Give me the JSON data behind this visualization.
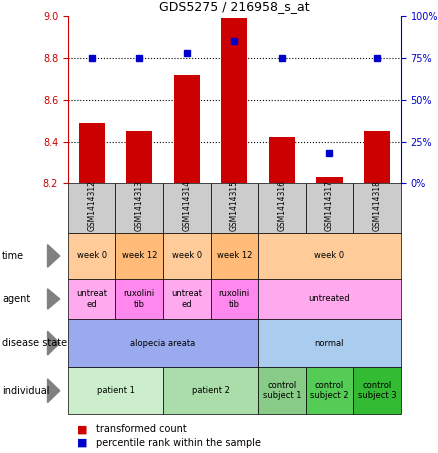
{
  "title": "GDS5275 / 216958_s_at",
  "samples": [
    "GSM1414312",
    "GSM1414313",
    "GSM1414314",
    "GSM1414315",
    "GSM1414316",
    "GSM1414317",
    "GSM1414318"
  ],
  "transformed_count": [
    8.49,
    8.45,
    8.72,
    8.99,
    8.42,
    8.23,
    8.45
  ],
  "percentile_rank": [
    75,
    75,
    78,
    85,
    75,
    18,
    75
  ],
  "ylim_left": [
    8.2,
    9.0
  ],
  "ylim_right": [
    0,
    100
  ],
  "yticks_left": [
    8.2,
    8.4,
    8.6,
    8.8,
    9.0
  ],
  "yticks_right": [
    0,
    25,
    50,
    75,
    100
  ],
  "bar_color": "#cc0000",
  "dot_color": "#0000cc",
  "left_axis_color": "#cc0000",
  "right_axis_color": "#0000cc",
  "sample_box_color": "#cccccc",
  "rows": [
    {
      "key": "individual",
      "label": "individual",
      "cells": [
        {
          "text": "patient 1",
          "span": [
            0,
            1
          ],
          "color": "#cceecc"
        },
        {
          "text": "patient 2",
          "span": [
            2,
            3
          ],
          "color": "#aaddaa"
        },
        {
          "text": "control\nsubject 1",
          "span": [
            4,
            4
          ],
          "color": "#88cc88"
        },
        {
          "text": "control\nsubject 2",
          "span": [
            5,
            5
          ],
          "color": "#55cc55"
        },
        {
          "text": "control\nsubject 3",
          "span": [
            6,
            6
          ],
          "color": "#33bb33"
        }
      ]
    },
    {
      "key": "disease_state",
      "label": "disease state",
      "cells": [
        {
          "text": "alopecia areata",
          "span": [
            0,
            3
          ],
          "color": "#99aaee"
        },
        {
          "text": "normal",
          "span": [
            4,
            6
          ],
          "color": "#aaccee"
        }
      ]
    },
    {
      "key": "agent",
      "label": "agent",
      "cells": [
        {
          "text": "untreat\ned",
          "span": [
            0,
            0
          ],
          "color": "#ffaaee"
        },
        {
          "text": "ruxolini\ntib",
          "span": [
            1,
            1
          ],
          "color": "#ff88ee"
        },
        {
          "text": "untreat\ned",
          "span": [
            2,
            2
          ],
          "color": "#ffaaee"
        },
        {
          "text": "ruxolini\ntib",
          "span": [
            3,
            3
          ],
          "color": "#ff88ee"
        },
        {
          "text": "untreated",
          "span": [
            4,
            6
          ],
          "color": "#ffaaee"
        }
      ]
    },
    {
      "key": "time",
      "label": "time",
      "cells": [
        {
          "text": "week 0",
          "span": [
            0,
            0
          ],
          "color": "#ffcc99"
        },
        {
          "text": "week 12",
          "span": [
            1,
            1
          ],
          "color": "#ffbb77"
        },
        {
          "text": "week 0",
          "span": [
            2,
            2
          ],
          "color": "#ffcc99"
        },
        {
          "text": "week 12",
          "span": [
            3,
            3
          ],
          "color": "#ffbb77"
        },
        {
          "text": "week 0",
          "span": [
            4,
            6
          ],
          "color": "#ffcc99"
        }
      ]
    }
  ]
}
